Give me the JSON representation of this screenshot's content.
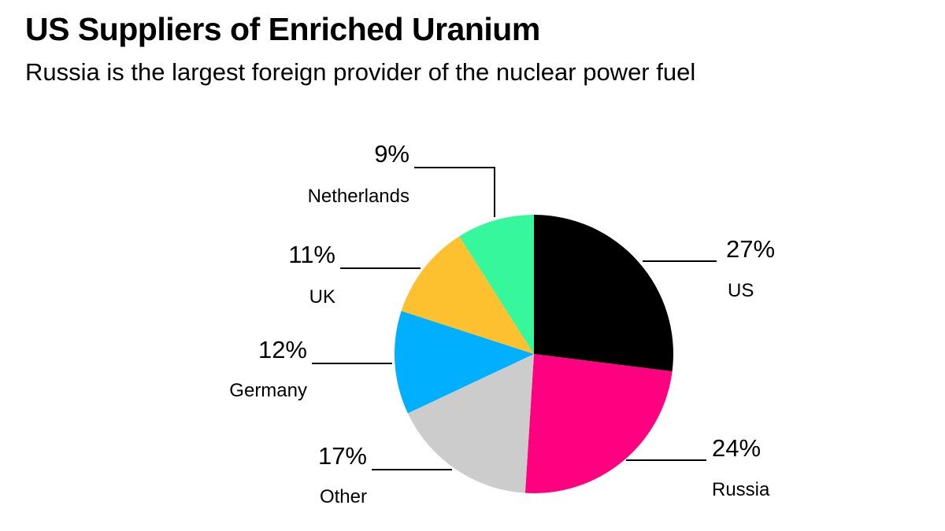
{
  "title": "US Suppliers of Enriched Uranium",
  "subtitle": "Russia is the largest foreign provider of the nuclear power fuel",
  "chart_data": {
    "type": "pie",
    "title": "US Suppliers of Enriched Uranium",
    "subtitle": "Russia is the largest foreign provider of the nuclear power fuel",
    "slices": [
      {
        "label": "US",
        "value": 27,
        "display": "27%",
        "color": "#000000"
      },
      {
        "label": "Russia",
        "value": 24,
        "display": "24%",
        "color": "#ff0080"
      },
      {
        "label": "Other",
        "value": 17,
        "display": "17%",
        "color": "#cccccc"
      },
      {
        "label": "Germany",
        "value": 12,
        "display": "12%",
        "color": "#00b0ff"
      },
      {
        "label": "UK",
        "value": 11,
        "display": "11%",
        "color": "#fdc02f"
      },
      {
        "label": "Netherlands",
        "value": 9,
        "display": "9%",
        "color": "#36f79b"
      }
    ],
    "start_angle": "12 o'clock",
    "direction": "clockwise",
    "legend": "none"
  }
}
